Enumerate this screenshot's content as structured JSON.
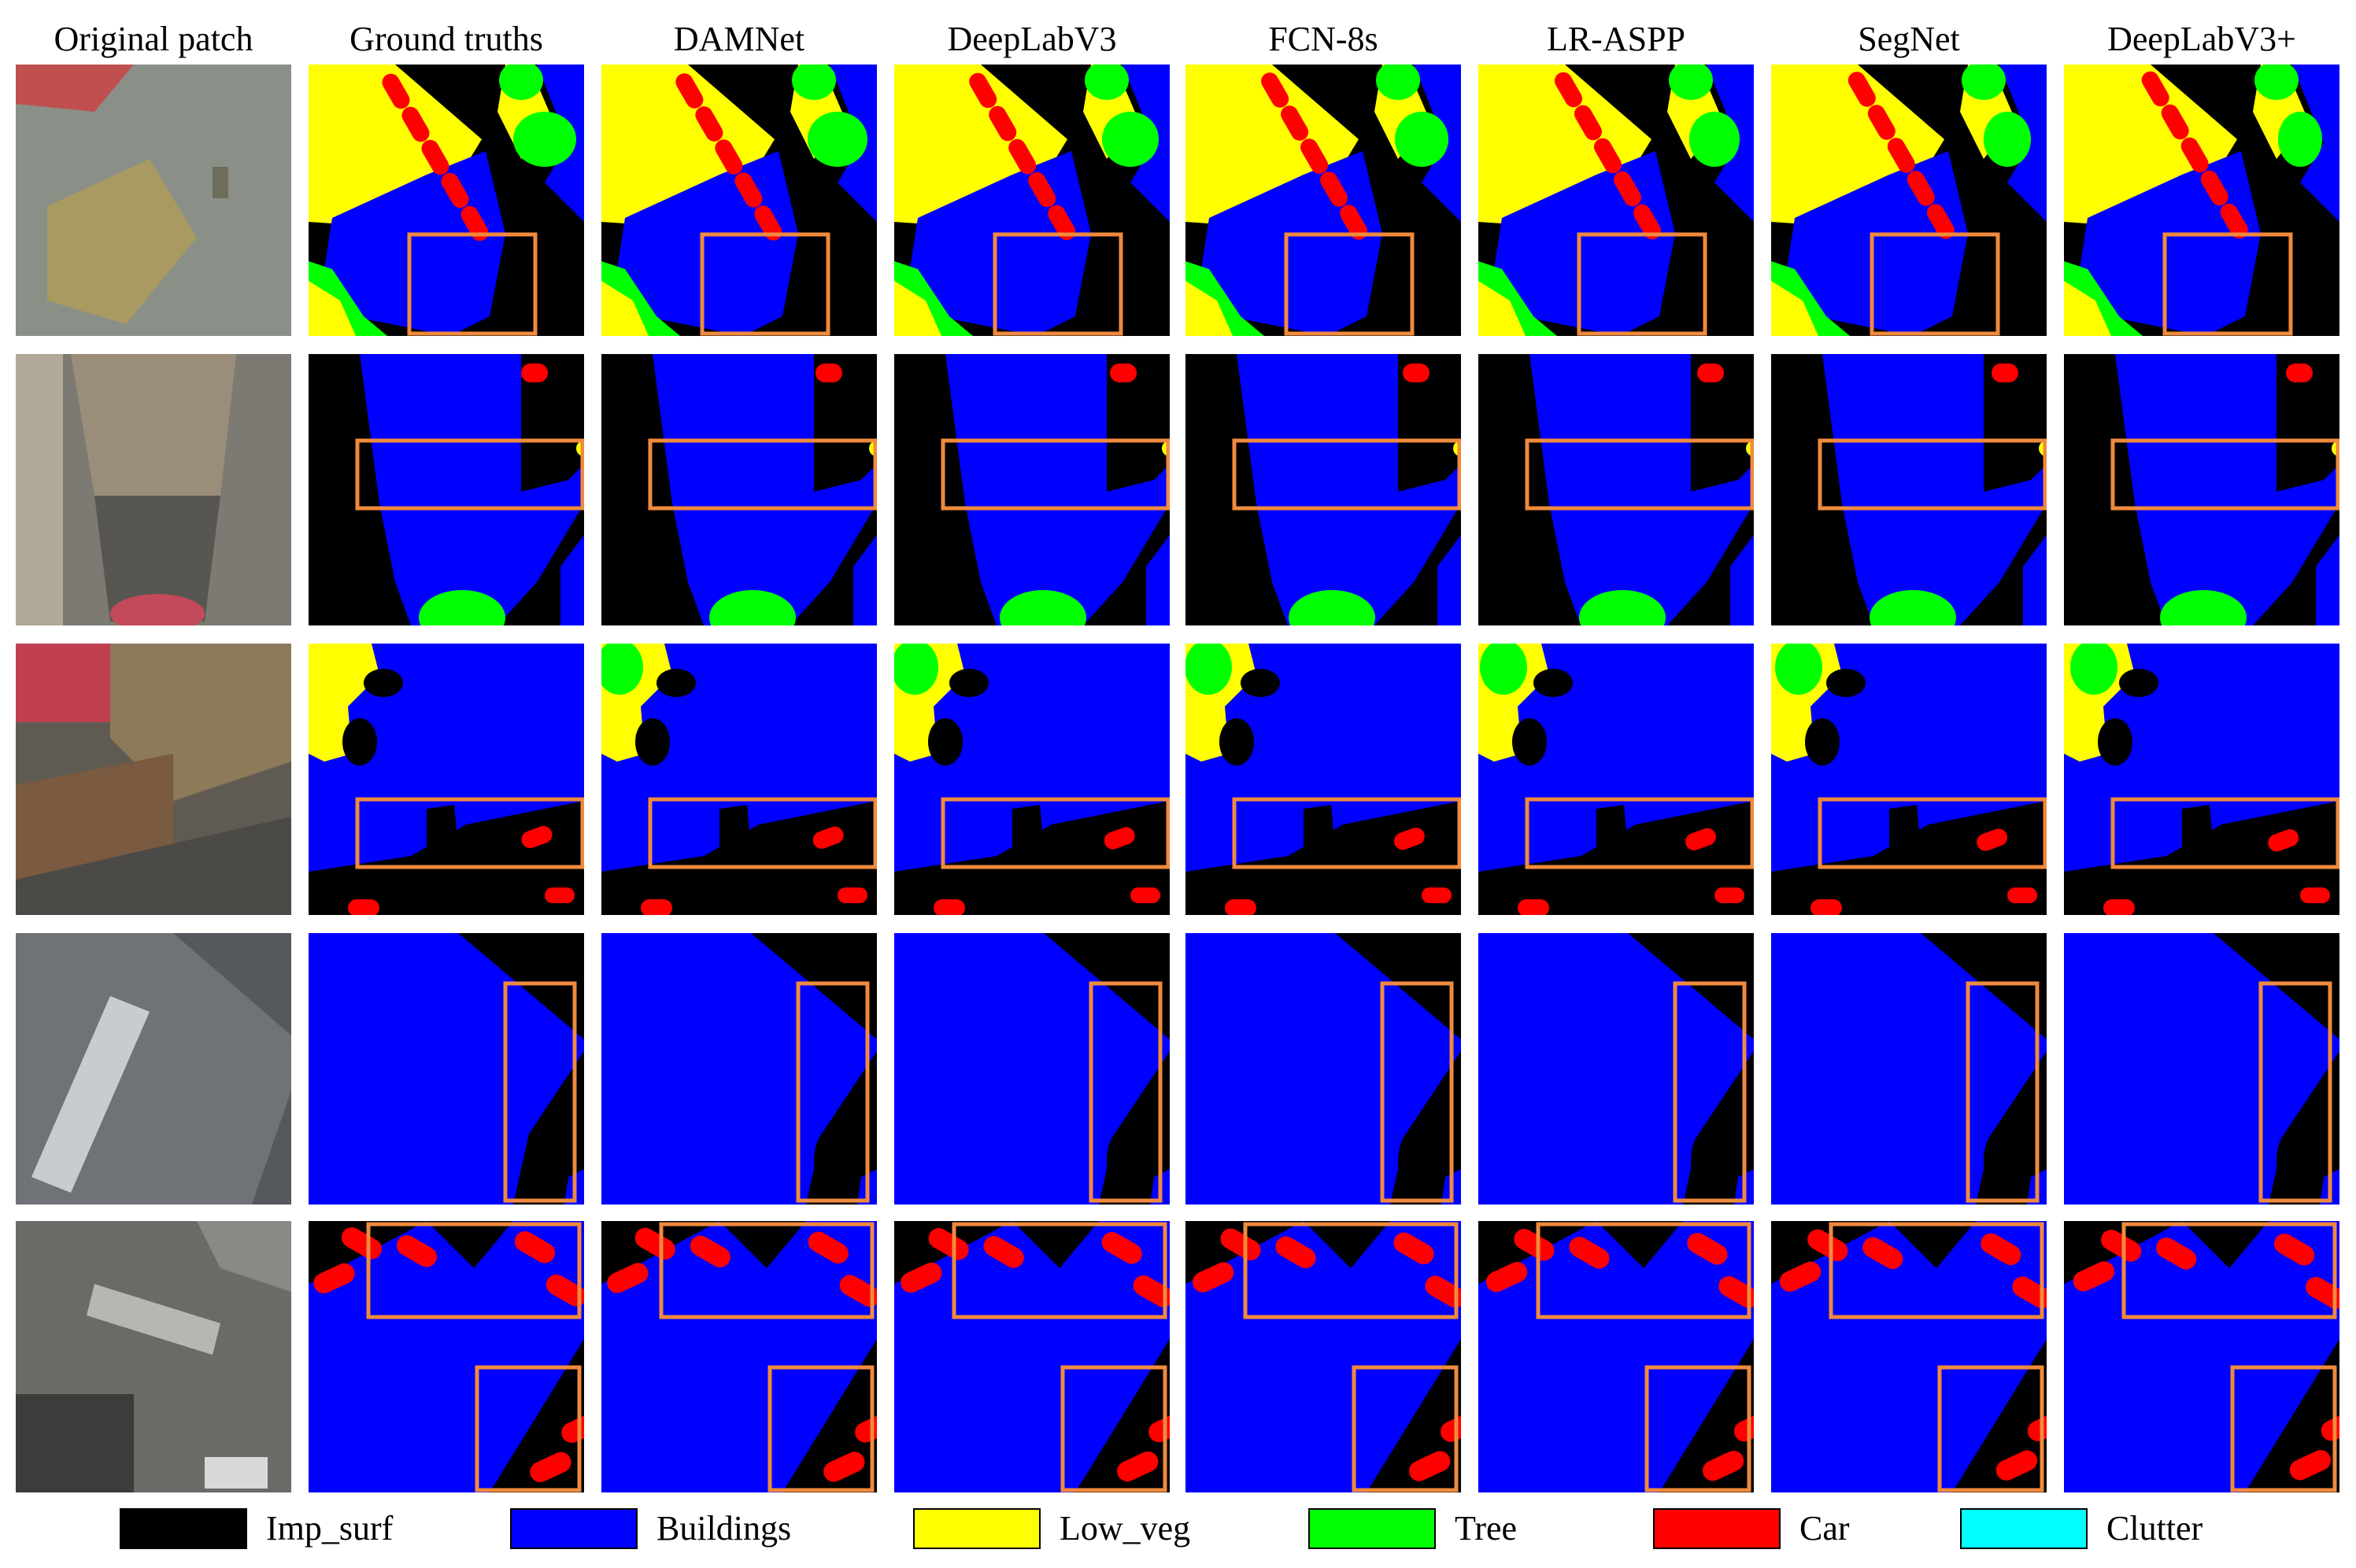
{
  "figure": {
    "column_headers": [
      "Original patch",
      "Ground truths",
      "DAMNet",
      "DeepLabV3",
      "FCN-8s",
      "LR-ASPP",
      "SegNet",
      "DeepLabV3+"
    ],
    "rows": 5,
    "colors": {
      "Imp_surf": "#000000",
      "Buildings": "#0000ff",
      "Low_veg": "#ffff00",
      "Tree": "#00ff00",
      "Car": "#ff0000",
      "Clutter": "#00ffff",
      "highlight_box": "#f08a3c"
    },
    "legend": [
      {
        "label": "Imp_surf",
        "color": "#000000"
      },
      {
        "label": "Buildings",
        "color": "#0000ff"
      },
      {
        "label": "Low_veg",
        "color": "#ffff00"
      },
      {
        "label": "Tree",
        "color": "#00ff00"
      },
      {
        "label": "Car",
        "color": "#ff0000"
      },
      {
        "label": "Clutter",
        "color": "#00ffff"
      }
    ]
  }
}
